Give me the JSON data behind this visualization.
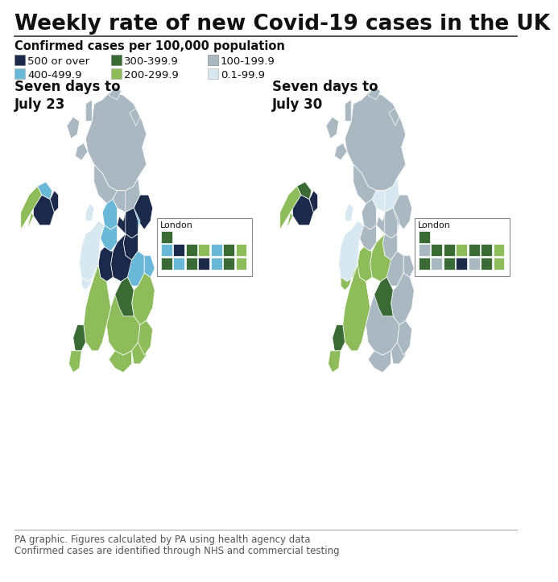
{
  "title": "Weekly rate of new Covid-19 cases in the UK",
  "subtitle": "Confirmed cases per 100,000 population",
  "legend_items": [
    {
      "label": "500 or over",
      "color": "#1b2a4a"
    },
    {
      "label": "400-499.9",
      "color": "#6ab8d8"
    },
    {
      "label": "300-399.9",
      "color": "#3a6b35"
    },
    {
      "label": "200-299.9",
      "color": "#8fbc5a"
    },
    {
      "label": "100-199.9",
      "color": "#aab8c2"
    },
    {
      "label": "0.1-99.9",
      "color": "#d8e8f0"
    }
  ],
  "map1_label": "Seven days to\nJuly 23",
  "map2_label": "Seven days to\nJuly 30",
  "footer_line1": "PA graphic. Figures calculated by PA using health agency data",
  "footer_line2": "Confirmed cases are identified through NHS and commercial testing",
  "background_color": "#ffffff",
  "title_fontsize": 19,
  "subtitle_fontsize": 10.5,
  "legend_fontsize": 9.5,
  "map_label_fontsize": 12,
  "footer_fontsize": 8.5
}
